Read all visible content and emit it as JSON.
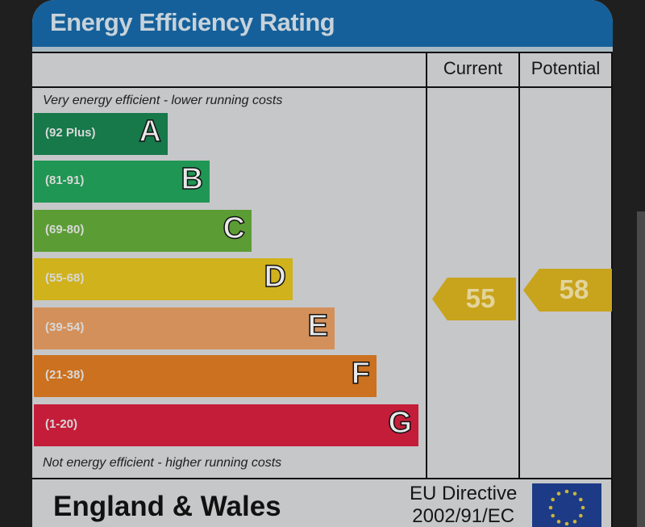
{
  "title": "Energy Efficiency Rating",
  "columns": {
    "current": "Current",
    "potential": "Potential"
  },
  "notes": {
    "top": "Very energy efficient - lower running costs",
    "bottom": "Not energy efficient - higher running costs"
  },
  "footer": {
    "region": "England & Wales",
    "directive_line1": "EU Directive",
    "directive_line2": "2002/91/EC"
  },
  "chart_data": {
    "type": "bar",
    "title": "Energy Efficiency Rating",
    "bands": [
      {
        "letter": "A",
        "range": "(92 Plus)",
        "color": "#17784a"
      },
      {
        "letter": "B",
        "range": "(81-91)",
        "color": "#1f9653"
      },
      {
        "letter": "C",
        "range": "(69-80)",
        "color": "#5b9d34"
      },
      {
        "letter": "D",
        "range": "(55-68)",
        "color": "#cfb21c"
      },
      {
        "letter": "E",
        "range": "(39-54)",
        "color": "#d4905a"
      },
      {
        "letter": "F",
        "range": "(21-38)",
        "color": "#cb711f"
      },
      {
        "letter": "G",
        "range": "(1-20)",
        "color": "#c41d3a"
      }
    ],
    "current": {
      "value": 55,
      "band": "D",
      "color": "#c8a31c"
    },
    "potential": {
      "value": 58,
      "band": "D",
      "color": "#c8a31c"
    }
  }
}
